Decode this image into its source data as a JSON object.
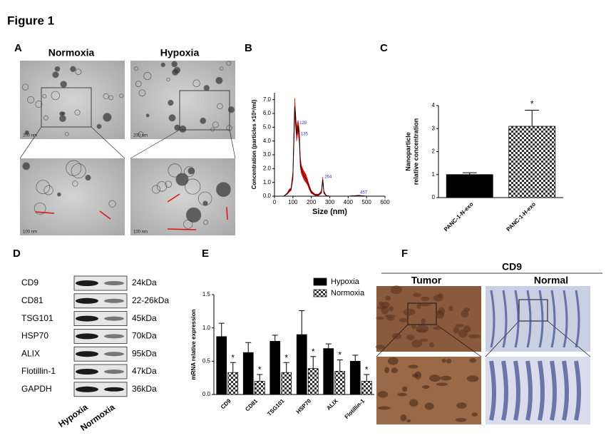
{
  "figure_title": "Figure 1",
  "panel_labels": [
    "A",
    "B",
    "C",
    "D",
    "E",
    "F"
  ],
  "panel_a": {
    "conditions": [
      "Normoxia",
      "Hypoxia"
    ],
    "scale_bars": [
      "200 nm",
      "200 nm",
      "100 nm",
      "100 nm"
    ]
  },
  "panel_d": {
    "proteins": [
      "CD9",
      "CD81",
      "TSG101",
      "HSP70",
      "ALIX",
      "Flotillin-1",
      "GAPDH"
    ],
    "sizes": [
      "24kDa",
      "22-26kDa",
      "45kDa",
      "70kDa",
      "95kDa",
      "47kDa",
      "36kDa"
    ],
    "lanes": [
      "Hypoxia",
      "Normoxia"
    ]
  },
  "panel_f": {
    "title": "CD9",
    "tissues": [
      "Tumor",
      "Normal"
    ]
  },
  "chart_data": [
    {
      "type": "line",
      "x_label": "Size (nm)",
      "y_label": "Concentration (particles ×10⁶/ml)",
      "x": [
        0,
        50,
        70,
        80,
        90,
        100,
        105,
        110,
        115,
        120,
        128,
        135,
        140,
        145,
        150,
        160,
        170,
        180,
        190,
        200,
        220,
        240,
        255,
        262,
        268,
        280,
        300,
        400,
        457,
        500,
        600
      ],
      "values": [
        0,
        0,
        0.2,
        0.4,
        0.5,
        1.5,
        4.0,
        6.5,
        5.5,
        4.5,
        5.1,
        4.3,
        2.5,
        2.0,
        1.8,
        1.5,
        1.3,
        1.0,
        0.6,
        0.3,
        0.1,
        0.1,
        0.3,
        1.2,
        0.3,
        0.05,
        0,
        0,
        0.05,
        0,
        0
      ],
      "error": [
        0,
        0,
        0.05,
        0.1,
        0.1,
        0.3,
        0.6,
        0.6,
        0.5,
        0.5,
        0.4,
        0.5,
        0.4,
        0.3,
        0.3,
        0.3,
        0.3,
        0.2,
        0.15,
        0.1,
        0.05,
        0.05,
        0.1,
        0.2,
        0.1,
        0.02,
        0,
        0,
        0.02,
        0,
        0
      ],
      "color": "#000000",
      "error_color": "#e01010",
      "annotations": [
        {
          "text": "128",
          "x": 128,
          "y": 5.1
        },
        {
          "text": "135",
          "x": 135,
          "y": 4.3
        },
        {
          "text": "264",
          "x": 264,
          "y": 1.2
        },
        {
          "text": "457",
          "x": 457,
          "y": 0.05
        }
      ],
      "xlim": [
        0,
        600
      ],
      "xticks": [
        0,
        100,
        200,
        300,
        400,
        500,
        600
      ],
      "ylim": [
        0,
        7.5
      ],
      "yticks": [
        {
          "value": 0,
          "label": "0.0"
        },
        {
          "value": 1,
          "label": "1.0"
        },
        {
          "value": 2,
          "label": "2.0"
        },
        {
          "value": 3,
          "label": "3.0"
        },
        {
          "value": 4,
          "label": "4.0"
        },
        {
          "value": 5,
          "label": "5.0"
        },
        {
          "value": 6,
          "label": "6.0"
        },
        {
          "value": 7,
          "label": "7.0"
        }
      ]
    },
    {
      "type": "bar",
      "y_label": [
        "Nanoparticle",
        "relative concentration"
      ],
      "categories": [
        "PANC-1-N-exo",
        "PANC-1-H-exo"
      ],
      "values": [
        1.0,
        3.1
      ],
      "error": [
        0.08,
        0.7
      ],
      "patterns": [
        "solid",
        "checker"
      ],
      "color": "#000000",
      "annotations": [
        {
          "text": "*",
          "category": "PANC-1-H-exo"
        }
      ],
      "ylim": [
        0,
        4
      ],
      "yticks": [
        0,
        1,
        2,
        3,
        4
      ]
    },
    {
      "type": "bar",
      "y_label": "mRNA relative expression",
      "categories": [
        "CD9",
        "CD81",
        "TSG101",
        "HSP70",
        "ALIX",
        "Flotillin-1"
      ],
      "series": [
        {
          "name": "Hypoxia",
          "color": "#000000",
          "pattern": "solid",
          "values": [
            0.87,
            0.63,
            0.8,
            0.9,
            0.69,
            0.5
          ],
          "error": [
            0.2,
            0.15,
            0.09,
            0.36,
            0.07,
            0.09
          ]
        },
        {
          "name": "Normoxia",
          "color": "#000000",
          "pattern": "checker",
          "values": [
            0.33,
            0.2,
            0.33,
            0.39,
            0.35,
            0.2
          ],
          "error": [
            0.15,
            0.1,
            0.15,
            0.18,
            0.17,
            0.1
          ]
        }
      ],
      "annotations": [
        {
          "text": "*",
          "category": "CD9",
          "series": "Normoxia"
        },
        {
          "text": "*",
          "category": "CD81",
          "series": "Normoxia"
        },
        {
          "text": "*",
          "category": "TSG101",
          "series": "Normoxia"
        },
        {
          "text": "*",
          "category": "HSP70",
          "series": "Normoxia"
        },
        {
          "text": "*",
          "category": "ALIX",
          "series": "Normoxia"
        },
        {
          "text": "*",
          "category": "Flotillin-1",
          "series": "Normoxia"
        }
      ],
      "legend": "upper right",
      "ylim": [
        0,
        1.5
      ],
      "yticks": [
        {
          "value": 0,
          "label": "0.0"
        },
        0.5,
        {
          "value": 1,
          "label": "1.0"
        },
        1.5
      ]
    }
  ]
}
